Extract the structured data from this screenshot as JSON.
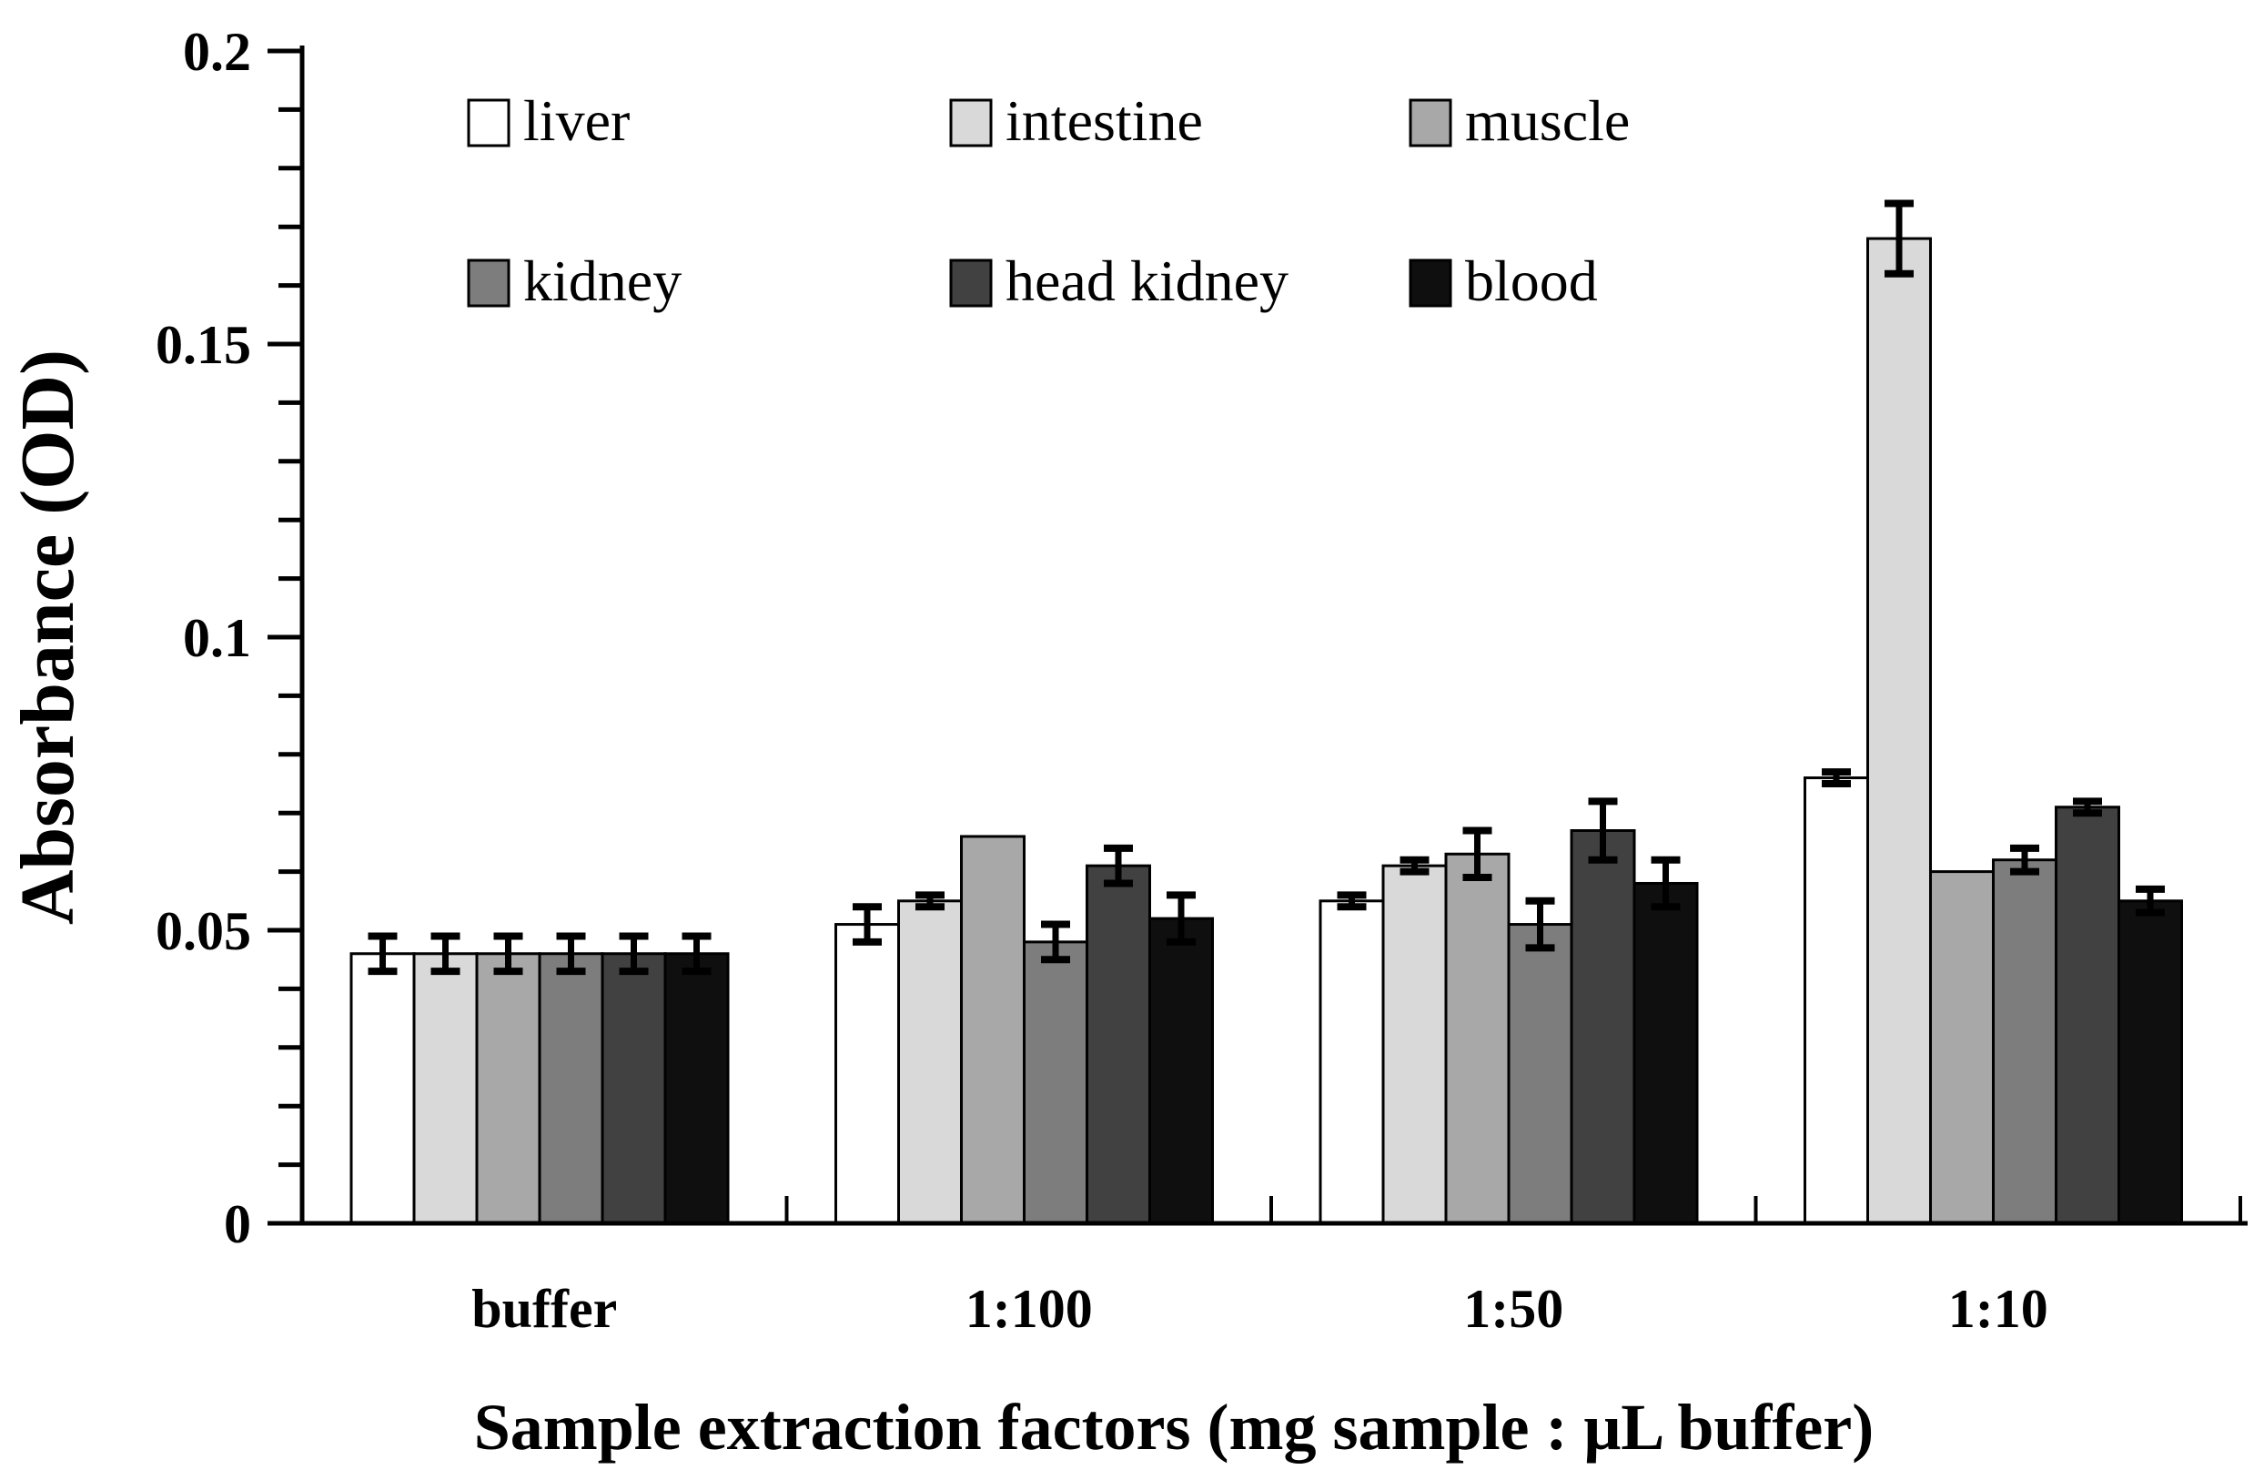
{
  "chart_data": {
    "type": "bar",
    "title": "",
    "xlabel": "Sample extraction factors (mg sample : μL buffer)",
    "ylabel": "Absorbance  (OD)",
    "categories": [
      "buffer",
      "1:100",
      "1:50",
      "1:10"
    ],
    "series": [
      {
        "name": "liver",
        "color": "#ffffff",
        "values": [
          0.046,
          0.051,
          0.055,
          0.076
        ],
        "errors": [
          0.003,
          0.003,
          0.001,
          0.001
        ]
      },
      {
        "name": "intestine",
        "color": "#d9d9d9",
        "values": [
          0.046,
          0.055,
          0.061,
          0.168
        ],
        "errors": [
          0.003,
          0.001,
          0.001,
          0.006
        ]
      },
      {
        "name": "muscle",
        "color": "#a8a8a8",
        "values": [
          0.046,
          0.066,
          0.063,
          0.06
        ],
        "errors": [
          0.003,
          0,
          0.004,
          0
        ]
      },
      {
        "name": "kidney",
        "color": "#7d7d7d",
        "values": [
          0.046,
          0.048,
          0.051,
          0.062
        ],
        "errors": [
          0.003,
          0.003,
          0.004,
          0.002
        ]
      },
      {
        "name": "head kidney",
        "color": "#414141",
        "values": [
          0.046,
          0.061,
          0.067,
          0.071
        ],
        "errors": [
          0.003,
          0.003,
          0.005,
          0.001
        ]
      },
      {
        "name": "blood",
        "color": "#0f0f0f",
        "values": [
          0.046,
          0.052,
          0.058,
          0.055
        ],
        "errors": [
          0.003,
          0.004,
          0.004,
          0.002
        ]
      }
    ],
    "ylim": [
      0,
      0.2
    ],
    "ytick_values": [
      0,
      0.05,
      0.1,
      0.15,
      0.2
    ],
    "ytick_labels": [
      "0",
      "0.05",
      "0.1",
      "0.15",
      "0.2"
    ],
    "yminor_interval": 0.01,
    "grid": "off",
    "legend_position": "inside-top-left",
    "legend_rows": [
      [
        "liver",
        "intestine",
        "muscle"
      ],
      [
        "kidney",
        "head kidney",
        "blood"
      ]
    ],
    "colors": {
      "axis": "#000000",
      "bar_outline": "#000000",
      "error_bar": "#000000",
      "background": "#ffffff"
    }
  }
}
